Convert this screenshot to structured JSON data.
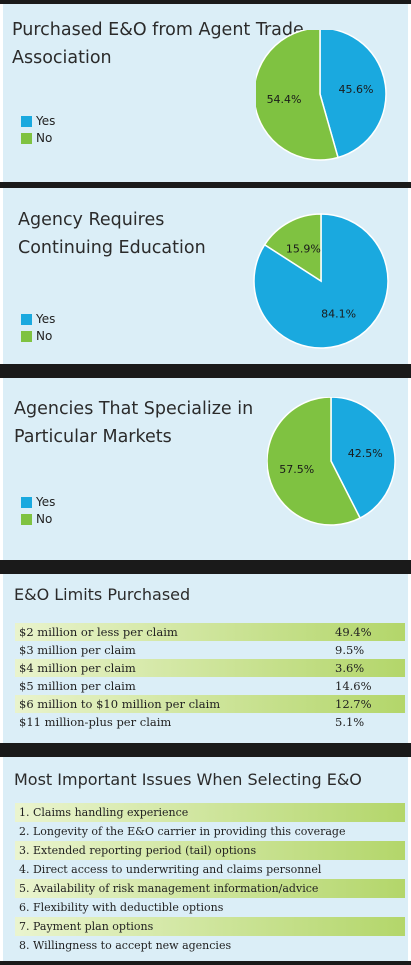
{
  "colors": {
    "yes": "#1aa9df",
    "no": "#7fc241",
    "dark_bar": "#1a1a1a",
    "panel_bg": "#dbeef7"
  },
  "chart_data": [
    {
      "type": "pie",
      "title": "Purchased E&O from Agent Trade Association",
      "slices": [
        {
          "name": "Yes",
          "value": 45.6,
          "label": "45.6%"
        },
        {
          "name": "No",
          "value": 54.4,
          "label": "54.4%"
        }
      ]
    },
    {
      "type": "pie",
      "title": "Agency Requires Continuing Education",
      "slices": [
        {
          "name": "Yes",
          "value": 84.1,
          "label": "84.1%"
        },
        {
          "name": "No",
          "value": 15.9,
          "label": "15.9%"
        }
      ]
    },
    {
      "type": "pie",
      "title": "Agencies That Specialize in Particular Markets",
      "slices": [
        {
          "name": "Yes",
          "value": 42.5,
          "label": "42.5%"
        },
        {
          "name": "No",
          "value": 57.5,
          "label": "57.5%"
        }
      ]
    },
    {
      "type": "table",
      "title": "E&O Limits Purchased",
      "rows": [
        {
          "label": "$2 million or less per claim",
          "value": "49.4%"
        },
        {
          "label": "$3 million per claim",
          "value": "9.5%"
        },
        {
          "label": "$4 million per claim",
          "value": "3.6%"
        },
        {
          "label": "$5 million per claim",
          "value": "14.6%"
        },
        {
          "label": "$6 million to $10 million per claim",
          "value": "12.7%"
        },
        {
          "label": "$11 million-plus per claim",
          "value": "5.1%"
        }
      ]
    },
    {
      "type": "table",
      "title": "Most Important Issues When Selecting E&O",
      "rows": [
        {
          "label": "1. Claims handling experience"
        },
        {
          "label": "2. Longevity of the E&O carrier in providing this coverage"
        },
        {
          "label": "3. Extended reporting period (tail) options"
        },
        {
          "label": "4. Direct access to underwriting and claims personnel"
        },
        {
          "label": "5. Availability of risk management information/advice"
        },
        {
          "label": "6. Flexibility with deductible options"
        },
        {
          "label": "7. Payment plan options"
        },
        {
          "label": "8. Willingness to accept new agencies"
        }
      ]
    }
  ],
  "panels": {
    "p1": {
      "title_line1": "Purchased E&O from Agent Trade",
      "title_line2": "Association",
      "legend_yes": "Yes",
      "legend_no": "No"
    },
    "p2": {
      "title_line1": "Agency Requires",
      "title_line2": "Continuing Education",
      "legend_yes": "Yes",
      "legend_no": "No"
    },
    "p3": {
      "title_line1": "Agencies That Specialize in",
      "title_line2": "Particular Markets",
      "legend_yes": "Yes",
      "legend_no": "No"
    }
  }
}
